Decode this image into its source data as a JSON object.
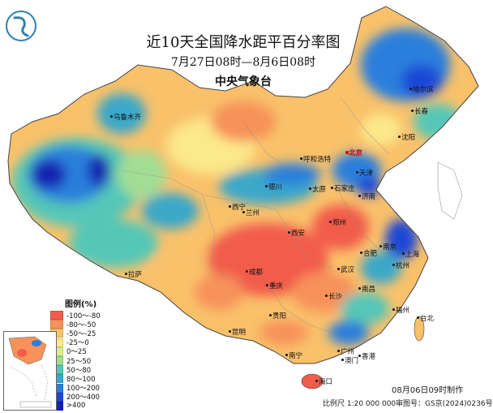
{
  "title": "近10天全国降水距平百分率图",
  "period": "7月27日08时—8月6日08时",
  "publisher": "中央气象台",
  "legend": {
    "title": "图例(%)",
    "items": [
      {
        "label": "-100～-80",
        "color": "#f25c4b"
      },
      {
        "label": "-80～-50",
        "color": "#f7925a"
      },
      {
        "label": "-50～-25",
        "color": "#f9c16a"
      },
      {
        "label": "-25～0",
        "color": "#fbe98a"
      },
      {
        "label": "0～25",
        "color": "#d8ef8f"
      },
      {
        "label": "25～50",
        "color": "#a2dd94"
      },
      {
        "label": "50～80",
        "color": "#55c7b8"
      },
      {
        "label": "80～100",
        "color": "#3aa7c9"
      },
      {
        "label": "100～200",
        "color": "#2b7fdc"
      },
      {
        "label": "200～400",
        "color": "#1d46d6"
      },
      {
        "label": ">400",
        "color": "#1420b0"
      }
    ]
  },
  "cities": [
    {
      "name": "乌鲁木齐"
    },
    {
      "name": "呼和浩特"
    },
    {
      "name": "北京"
    },
    {
      "name": "天津"
    },
    {
      "name": "哈尔滨"
    },
    {
      "name": "长春"
    },
    {
      "name": "沈阳"
    },
    {
      "name": "银川"
    },
    {
      "name": "太原"
    },
    {
      "name": "石家庄"
    },
    {
      "name": "济南"
    },
    {
      "name": "西宁"
    },
    {
      "name": "兰州"
    },
    {
      "name": "郑州"
    },
    {
      "name": "西安"
    },
    {
      "name": "南京"
    },
    {
      "name": "合肥"
    },
    {
      "name": "上海"
    },
    {
      "name": "杭州"
    },
    {
      "name": "成都"
    },
    {
      "name": "武汉"
    },
    {
      "name": "拉萨"
    },
    {
      "name": "重庆"
    },
    {
      "name": "长沙"
    },
    {
      "name": "南昌"
    },
    {
      "name": "福州"
    },
    {
      "name": "贵阳"
    },
    {
      "name": "台北"
    },
    {
      "name": "昆明"
    },
    {
      "name": "广州"
    },
    {
      "name": "南宁"
    },
    {
      "name": "香港"
    },
    {
      "name": "澳门"
    },
    {
      "name": "海口"
    }
  ],
  "footer": {
    "made": "08月06日09时制作",
    "scale": "比例尺 1:20 000 000",
    "approval": "审图号：GS京(2024)0236号"
  }
}
